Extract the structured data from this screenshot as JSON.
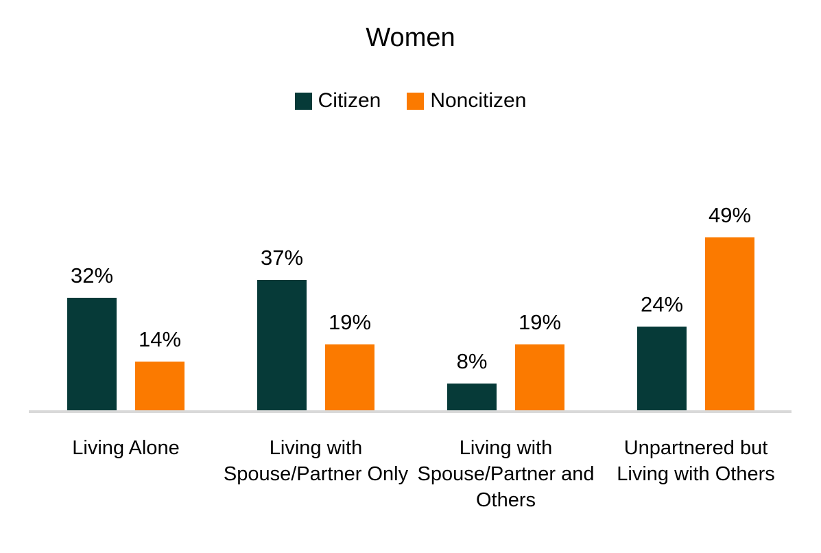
{
  "chart_data": {
    "type": "bar",
    "title": "Women",
    "categories": [
      "Living Alone",
      "Living with Spouse/Partner Only",
      "Living with Spouse/Partner and Others",
      "Unpartnered but Living with Others"
    ],
    "series": [
      {
        "name": "Citizen",
        "color": "#063a38",
        "values": [
          32,
          37,
          8,
          24
        ],
        "labels": [
          "32%",
          "37%",
          "8%",
          "24%"
        ]
      },
      {
        "name": "Noncitizen",
        "color": "#fb7a00",
        "values": [
          14,
          19,
          19,
          49
        ],
        "labels": [
          "14%",
          "19%",
          "19%",
          "49%"
        ]
      }
    ],
    "ylim": [
      0,
      55
    ],
    "value_suffix": "%",
    "legend_position": "top",
    "grid": false,
    "axis_line_color": "#d9d9d9",
    "background": "#ffffff"
  }
}
